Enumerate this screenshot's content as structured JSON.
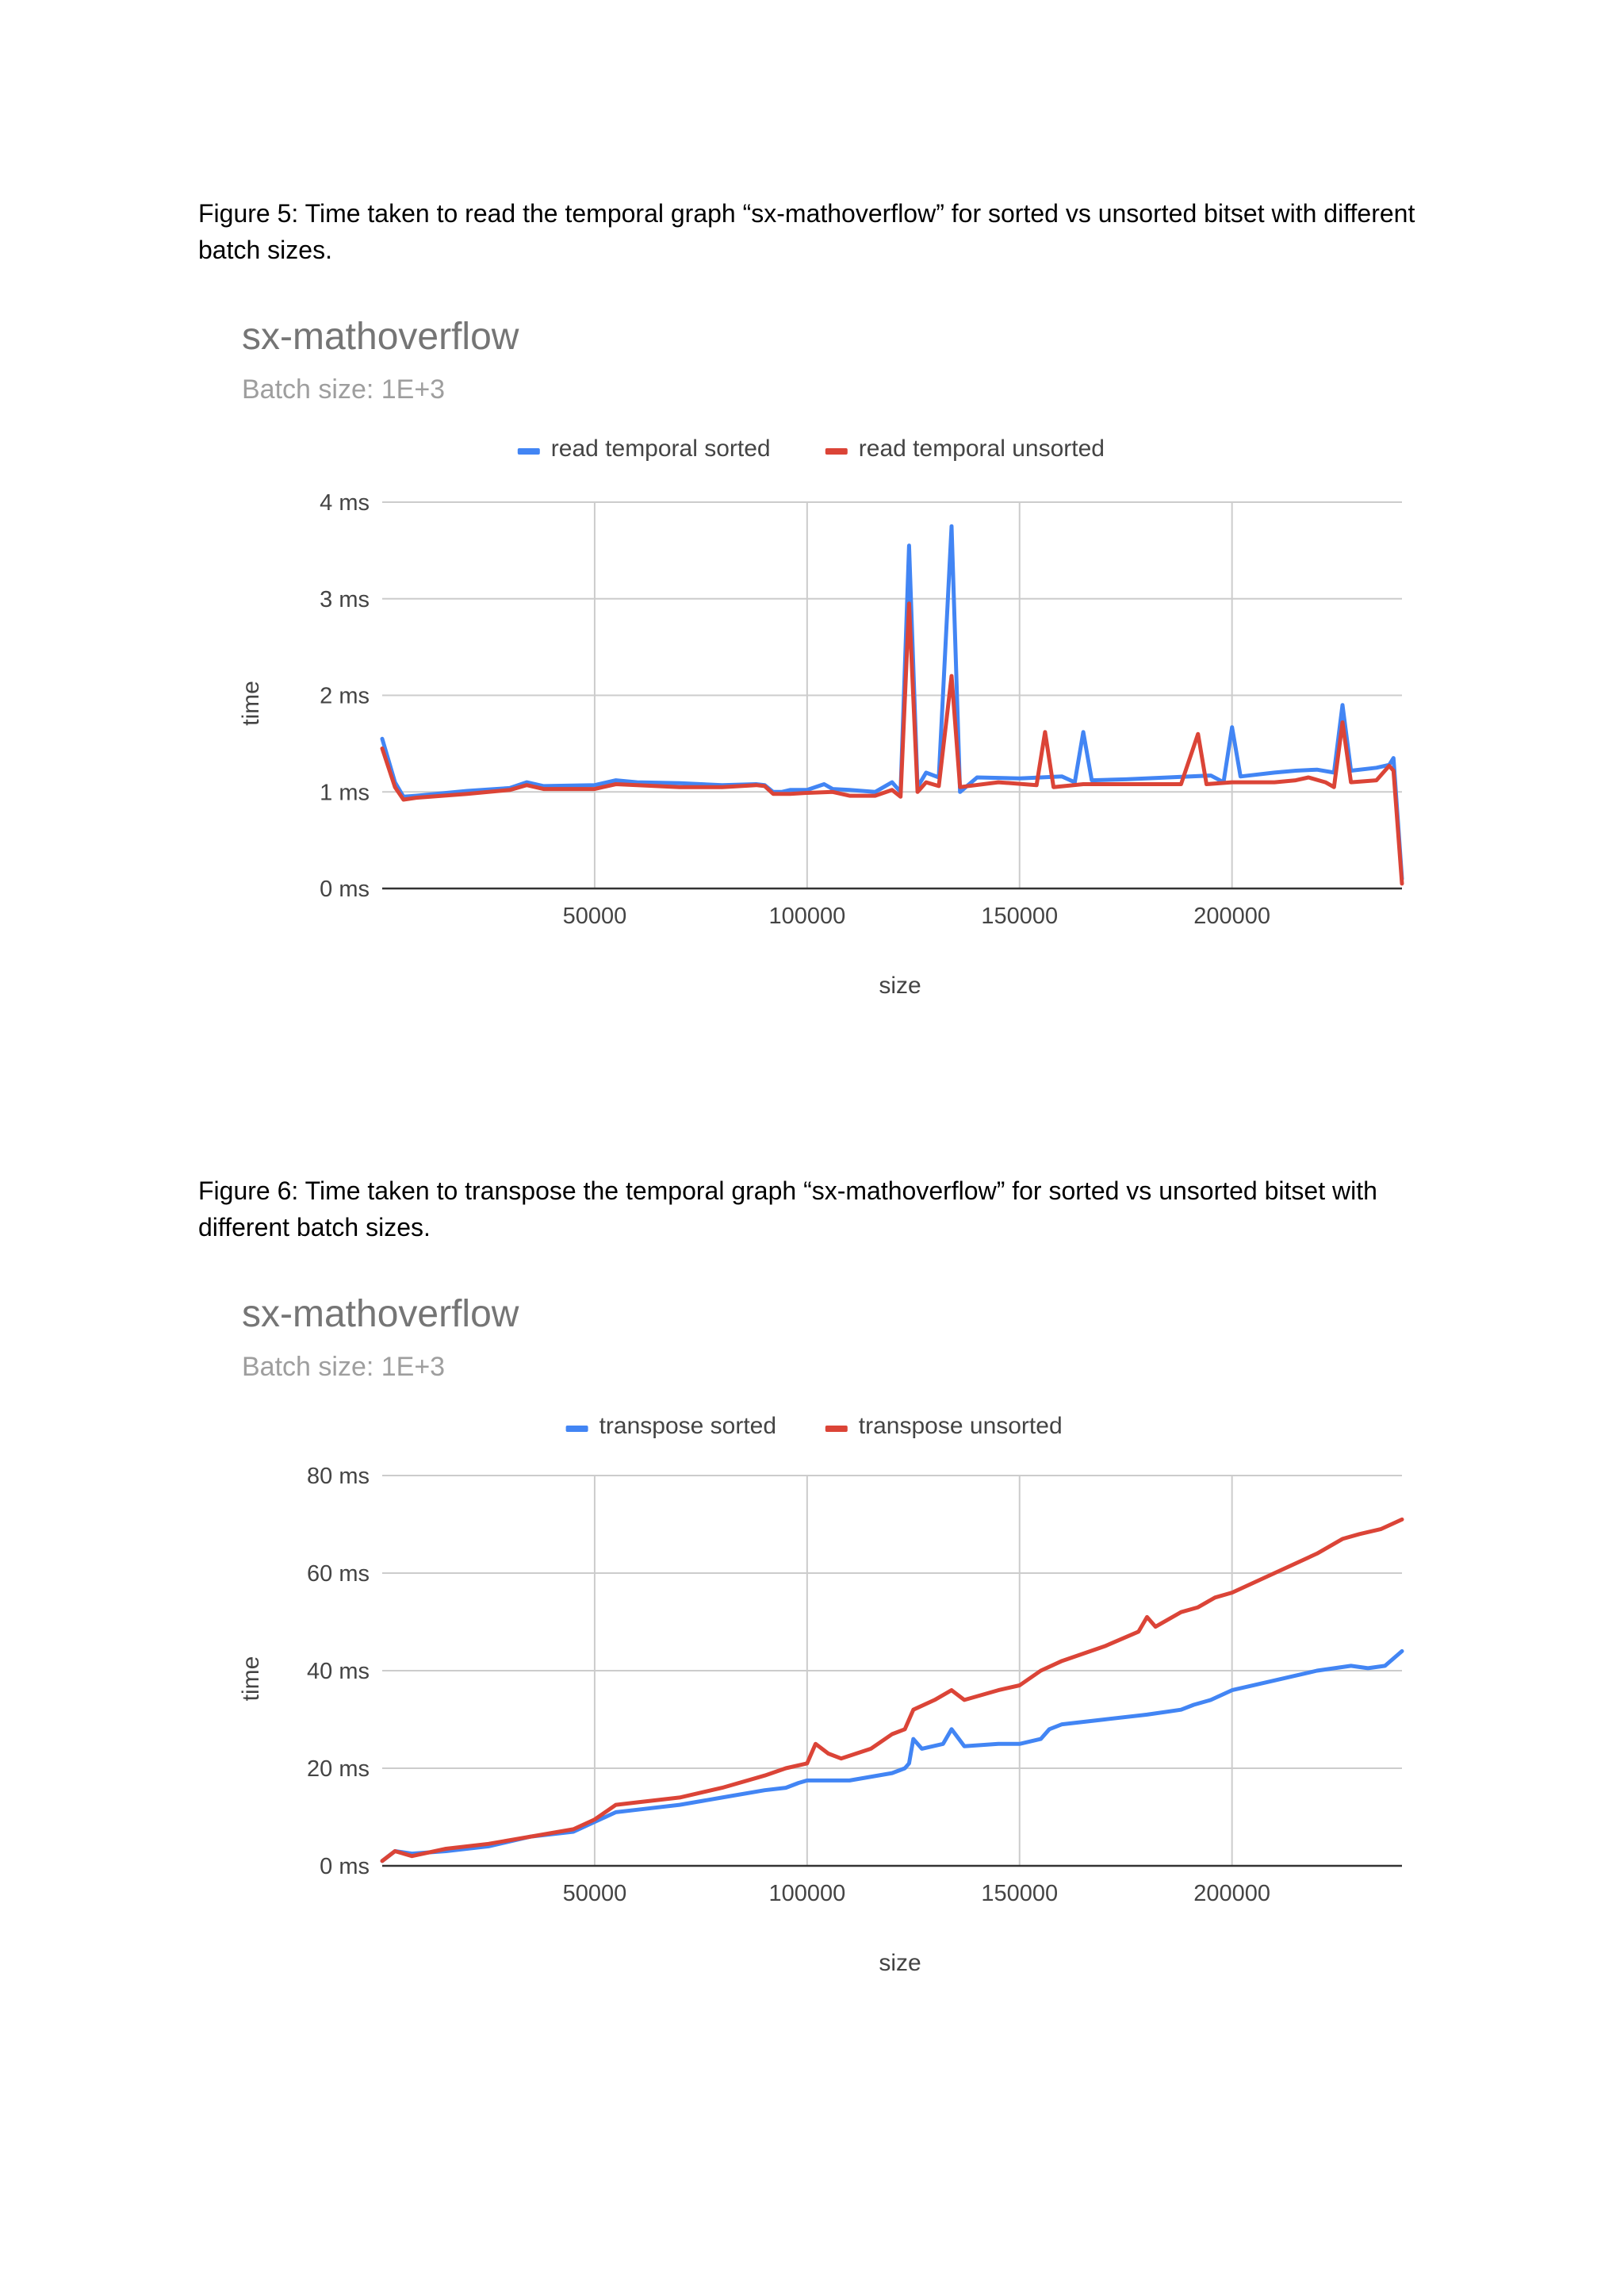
{
  "captions": [
    "Figure 5: Time taken to read the temporal graph “sx-mathoverflow” for sorted vs unsorted bitset with different batch sizes.",
    "Figure 6: Time taken to transpose the temporal graph “sx-mathoverflow” for sorted vs unsorted bitset with different batch sizes."
  ],
  "chart_data": [
    {
      "type": "line",
      "title": "sx-mathoverflow",
      "subtitle": "Batch size: 1E+3",
      "xlabel": "size",
      "ylabel": "time",
      "xlim": [
        0,
        240000
      ],
      "ylim": [
        0,
        4
      ],
      "x_ticks": [
        50000,
        100000,
        150000,
        200000
      ],
      "y_ticks": [
        "0 ms",
        "1 ms",
        "2 ms",
        "3 ms",
        "4 ms"
      ],
      "y_tick_values": [
        0,
        1,
        2,
        3,
        4
      ],
      "grid": true,
      "legend_position": "top",
      "colors": {
        "sorted": "#4285f4",
        "unsorted": "#db4437",
        "grid": "#cccccc",
        "baseline": "#333333"
      },
      "series": [
        {
          "name": "read temporal sorted",
          "color": "#4285f4",
          "points": [
            [
              0,
              1.55
            ],
            [
              3000,
              1.1
            ],
            [
              5000,
              0.95
            ],
            [
              8000,
              0.96
            ],
            [
              20000,
              1.01
            ],
            [
              30000,
              1.04
            ],
            [
              34000,
              1.1
            ],
            [
              38000,
              1.06
            ],
            [
              50000,
              1.07
            ],
            [
              55000,
              1.12
            ],
            [
              60000,
              1.1
            ],
            [
              70000,
              1.09
            ],
            [
              80000,
              1.07
            ],
            [
              88000,
              1.08
            ],
            [
              90000,
              1.07
            ],
            [
              92000,
              1.0
            ],
            [
              94000,
              1.0
            ],
            [
              96000,
              1.02
            ],
            [
              100000,
              1.02
            ],
            [
              104000,
              1.08
            ],
            [
              106000,
              1.03
            ],
            [
              110000,
              1.02
            ],
            [
              116000,
              1.0
            ],
            [
              120000,
              1.1
            ],
            [
              122000,
              1.0
            ],
            [
              124000,
              3.55
            ],
            [
              126000,
              1.05
            ],
            [
              128000,
              1.2
            ],
            [
              131000,
              1.15
            ],
            [
              134000,
              3.75
            ],
            [
              136000,
              1.0
            ],
            [
              140000,
              1.15
            ],
            [
              150000,
              1.14
            ],
            [
              160000,
              1.16
            ],
            [
              163000,
              1.1
            ],
            [
              165000,
              1.62
            ],
            [
              167000,
              1.12
            ],
            [
              175000,
              1.13
            ],
            [
              185000,
              1.15
            ],
            [
              195000,
              1.17
            ],
            [
              198000,
              1.1
            ],
            [
              200000,
              1.67
            ],
            [
              202000,
              1.16
            ],
            [
              210000,
              1.2
            ],
            [
              215000,
              1.22
            ],
            [
              220000,
              1.23
            ],
            [
              224000,
              1.2
            ],
            [
              226000,
              1.9
            ],
            [
              228000,
              1.22
            ],
            [
              234000,
              1.25
            ],
            [
              237000,
              1.28
            ],
            [
              238000,
              1.35
            ],
            [
              240000,
              0.1
            ]
          ]
        },
        {
          "name": "read temporal unsorted",
          "color": "#db4437",
          "points": [
            [
              0,
              1.45
            ],
            [
              3000,
              1.05
            ],
            [
              5000,
              0.92
            ],
            [
              8000,
              0.94
            ],
            [
              20000,
              0.98
            ],
            [
              30000,
              1.02
            ],
            [
              34000,
              1.07
            ],
            [
              38000,
              1.03
            ],
            [
              50000,
              1.03
            ],
            [
              55000,
              1.08
            ],
            [
              60000,
              1.07
            ],
            [
              70000,
              1.05
            ],
            [
              80000,
              1.05
            ],
            [
              88000,
              1.07
            ],
            [
              90000,
              1.06
            ],
            [
              92000,
              0.98
            ],
            [
              96000,
              0.98
            ],
            [
              100000,
              0.99
            ],
            [
              106000,
              1.0
            ],
            [
              110000,
              0.96
            ],
            [
              116000,
              0.96
            ],
            [
              120000,
              1.02
            ],
            [
              122000,
              0.95
            ],
            [
              124000,
              2.95
            ],
            [
              126000,
              1.0
            ],
            [
              128000,
              1.1
            ],
            [
              131000,
              1.06
            ],
            [
              134000,
              2.2
            ],
            [
              136000,
              1.05
            ],
            [
              145000,
              1.1
            ],
            [
              154000,
              1.07
            ],
            [
              156000,
              1.62
            ],
            [
              158000,
              1.05
            ],
            [
              165000,
              1.08
            ],
            [
              175000,
              1.08
            ],
            [
              188000,
              1.08
            ],
            [
              192000,
              1.6
            ],
            [
              194000,
              1.08
            ],
            [
              200000,
              1.1
            ],
            [
              210000,
              1.1
            ],
            [
              215000,
              1.12
            ],
            [
              218000,
              1.15
            ],
            [
              222000,
              1.1
            ],
            [
              224000,
              1.05
            ],
            [
              226000,
              1.72
            ],
            [
              228000,
              1.1
            ],
            [
              234000,
              1.12
            ],
            [
              237000,
              1.27
            ],
            [
              238000,
              1.22
            ],
            [
              240000,
              0.05
            ]
          ]
        }
      ]
    },
    {
      "type": "line",
      "title": "sx-mathoverflow",
      "subtitle": "Batch size: 1E+3",
      "xlabel": "size",
      "ylabel": "time",
      "xlim": [
        0,
        240000
      ],
      "ylim": [
        0,
        80
      ],
      "x_ticks": [
        50000,
        100000,
        150000,
        200000
      ],
      "y_ticks": [
        "0 ms",
        "20 ms",
        "40 ms",
        "60 ms",
        "80 ms"
      ],
      "y_tick_values": [
        0,
        20,
        40,
        60,
        80
      ],
      "grid": true,
      "legend_position": "top",
      "colors": {
        "sorted": "#4285f4",
        "unsorted": "#db4437",
        "grid": "#cccccc",
        "baseline": "#333333"
      },
      "series": [
        {
          "name": "transpose sorted",
          "color": "#4285f4",
          "points": [
            [
              0,
              1
            ],
            [
              3000,
              3
            ],
            [
              7000,
              2.5
            ],
            [
              15000,
              3
            ],
            [
              25000,
              4
            ],
            [
              35000,
              6
            ],
            [
              45000,
              7
            ],
            [
              50000,
              9
            ],
            [
              55000,
              11
            ],
            [
              60000,
              11.5
            ],
            [
              70000,
              12.5
            ],
            [
              80000,
              14
            ],
            [
              90000,
              15.5
            ],
            [
              95000,
              16
            ],
            [
              98000,
              17
            ],
            [
              100000,
              17.5
            ],
            [
              110000,
              17.5
            ],
            [
              120000,
              19
            ],
            [
              123000,
              20
            ],
            [
              124000,
              21
            ],
            [
              125000,
              26
            ],
            [
              127000,
              24
            ],
            [
              132000,
              25
            ],
            [
              134000,
              28
            ],
            [
              137000,
              24.5
            ],
            [
              145000,
              25
            ],
            [
              150000,
              25
            ],
            [
              155000,
              26
            ],
            [
              157000,
              28
            ],
            [
              160000,
              29
            ],
            [
              170000,
              30
            ],
            [
              180000,
              31
            ],
            [
              188000,
              32
            ],
            [
              191000,
              33
            ],
            [
              195000,
              34
            ],
            [
              200000,
              36
            ],
            [
              210000,
              38
            ],
            [
              220000,
              40
            ],
            [
              228000,
              41
            ],
            [
              232000,
              40.5
            ],
            [
              236000,
              41
            ],
            [
              240000,
              44
            ]
          ]
        },
        {
          "name": "transpose unsorted",
          "color": "#db4437",
          "points": [
            [
              0,
              1
            ],
            [
              3000,
              3
            ],
            [
              7000,
              2
            ],
            [
              15000,
              3.5
            ],
            [
              25000,
              4.5
            ],
            [
              35000,
              6
            ],
            [
              45000,
              7.5
            ],
            [
              50000,
              9.5
            ],
            [
              55000,
              12.5
            ],
            [
              60000,
              13
            ],
            [
              70000,
              14
            ],
            [
              80000,
              16
            ],
            [
              90000,
              18.5
            ],
            [
              95000,
              20
            ],
            [
              100000,
              21
            ],
            [
              102000,
              25
            ],
            [
              105000,
              23
            ],
            [
              108000,
              22
            ],
            [
              115000,
              24
            ],
            [
              120000,
              27
            ],
            [
              123000,
              28
            ],
            [
              125000,
              32
            ],
            [
              130000,
              34
            ],
            [
              134000,
              36
            ],
            [
              137000,
              34
            ],
            [
              145000,
              36
            ],
            [
              150000,
              37
            ],
            [
              155000,
              40
            ],
            [
              160000,
              42
            ],
            [
              170000,
              45
            ],
            [
              178000,
              48
            ],
            [
              180000,
              51
            ],
            [
              182000,
              49
            ],
            [
              188000,
              52
            ],
            [
              192000,
              53
            ],
            [
              196000,
              55
            ],
            [
              200000,
              56
            ],
            [
              210000,
              60
            ],
            [
              220000,
              64
            ],
            [
              226000,
              67
            ],
            [
              230000,
              68
            ],
            [
              235000,
              69
            ],
            [
              240000,
              71
            ]
          ]
        }
      ]
    }
  ]
}
